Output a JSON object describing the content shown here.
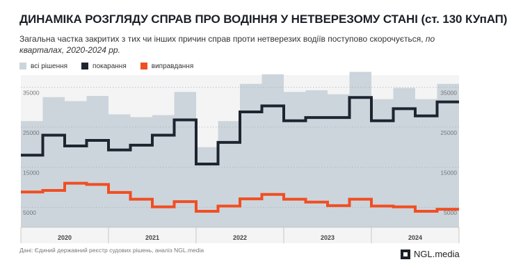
{
  "header": {
    "title": "ДИНАМІКА РОЗГЛЯДУ СПРАВ ПРО ВОДІННЯ У НЕТВЕРЕЗОМУ СТАНІ (ст. 130 КУпАП)",
    "subtitle_main": "Загальна частка закритих з тих чи інших причин справ проти нетверезих водіїв поступово скорочується,",
    "subtitle_italic": "по кварталах, 2020-2024 рр."
  },
  "footer": {
    "source": "Дані: Єдиний державний реєстр судових рішень, аналіз NGL.media",
    "brand": "NGL.media"
  },
  "colors": {
    "all_decisions": "#ccd5dc",
    "punishment": "#1e2430",
    "acquittal": "#f04e23",
    "background": "#f4f4f4"
  },
  "chart_data": {
    "type": "step-line",
    "x": [
      "2020 Q1",
      "2020 Q2",
      "2020 Q3",
      "2020 Q4",
      "2021 Q1",
      "2021 Q2",
      "2021 Q3",
      "2021 Q4",
      "2022 Q1",
      "2022 Q2",
      "2022 Q3",
      "2022 Q4",
      "2023 Q1",
      "2023 Q2",
      "2023 Q3",
      "2023 Q4",
      "2024 Q1",
      "2024 Q2",
      "2024 Q3",
      "2024 Q4"
    ],
    "years": [
      "2020",
      "2021",
      "2022",
      "2023",
      "2024"
    ],
    "ylim": [
      0,
      38000
    ],
    "yticks": [
      5000,
      15000,
      25000,
      35000
    ],
    "ytick_labels": [
      "5000",
      "15000",
      "25000",
      "35000"
    ],
    "grid": true,
    "legend": "top-left",
    "series": [
      {
        "name": "всі рішення",
        "type": "area",
        "values": [
          26500,
          32500,
          31500,
          32800,
          28200,
          27500,
          28000,
          33800,
          20000,
          26500,
          35800,
          38200,
          33800,
          34200,
          33200,
          38800,
          32000,
          34800,
          32000,
          35800
        ]
      },
      {
        "name": "покарання",
        "type": "line",
        "values": [
          18000,
          23000,
          20300,
          21700,
          19300,
          20500,
          23000,
          26800,
          15800,
          21200,
          28800,
          30300,
          26600,
          27400,
          27400,
          32400,
          26600,
          29600,
          27800,
          31300
        ]
      },
      {
        "name": "виправдання",
        "type": "line",
        "values": [
          8800,
          9200,
          11000,
          10700,
          8700,
          7000,
          5100,
          6400,
          4000,
          5300,
          7100,
          8200,
          7000,
          6300,
          5400,
          7000,
          5300,
          5100,
          4000,
          4500
        ]
      }
    ]
  }
}
